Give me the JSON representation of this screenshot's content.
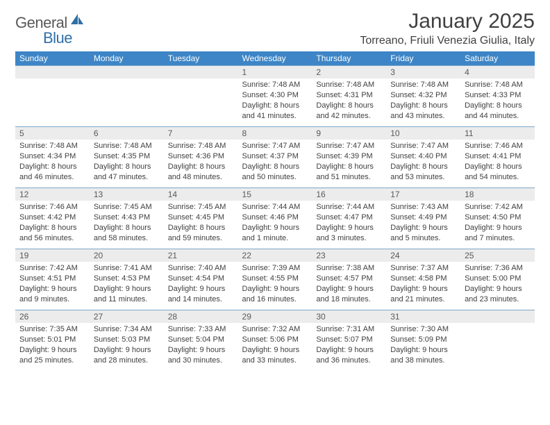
{
  "brand": {
    "general": "General",
    "blue": "Blue"
  },
  "title": "January 2025",
  "location": "Torreano, Friuli Venezia Giulia, Italy",
  "colors": {
    "header_bg": "#3d85c6",
    "header_text": "#ffffff",
    "daynum_bg": "#ececec",
    "text": "#404040",
    "muted": "#595959",
    "rule": "#7ba6c9",
    "brand_blue": "#2f6fa7"
  },
  "weekdays": [
    "Sunday",
    "Monday",
    "Tuesday",
    "Wednesday",
    "Thursday",
    "Friday",
    "Saturday"
  ],
  "weeks": [
    [
      {
        "n": "",
        "sr": "",
        "ss": "",
        "dl": ""
      },
      {
        "n": "",
        "sr": "",
        "ss": "",
        "dl": ""
      },
      {
        "n": "",
        "sr": "",
        "ss": "",
        "dl": ""
      },
      {
        "n": "1",
        "sr": "Sunrise: 7:48 AM",
        "ss": "Sunset: 4:30 PM",
        "dl": "Daylight: 8 hours and 41 minutes."
      },
      {
        "n": "2",
        "sr": "Sunrise: 7:48 AM",
        "ss": "Sunset: 4:31 PM",
        "dl": "Daylight: 8 hours and 42 minutes."
      },
      {
        "n": "3",
        "sr": "Sunrise: 7:48 AM",
        "ss": "Sunset: 4:32 PM",
        "dl": "Daylight: 8 hours and 43 minutes."
      },
      {
        "n": "4",
        "sr": "Sunrise: 7:48 AM",
        "ss": "Sunset: 4:33 PM",
        "dl": "Daylight: 8 hours and 44 minutes."
      }
    ],
    [
      {
        "n": "5",
        "sr": "Sunrise: 7:48 AM",
        "ss": "Sunset: 4:34 PM",
        "dl": "Daylight: 8 hours and 46 minutes."
      },
      {
        "n": "6",
        "sr": "Sunrise: 7:48 AM",
        "ss": "Sunset: 4:35 PM",
        "dl": "Daylight: 8 hours and 47 minutes."
      },
      {
        "n": "7",
        "sr": "Sunrise: 7:48 AM",
        "ss": "Sunset: 4:36 PM",
        "dl": "Daylight: 8 hours and 48 minutes."
      },
      {
        "n": "8",
        "sr": "Sunrise: 7:47 AM",
        "ss": "Sunset: 4:37 PM",
        "dl": "Daylight: 8 hours and 50 minutes."
      },
      {
        "n": "9",
        "sr": "Sunrise: 7:47 AM",
        "ss": "Sunset: 4:39 PM",
        "dl": "Daylight: 8 hours and 51 minutes."
      },
      {
        "n": "10",
        "sr": "Sunrise: 7:47 AM",
        "ss": "Sunset: 4:40 PM",
        "dl": "Daylight: 8 hours and 53 minutes."
      },
      {
        "n": "11",
        "sr": "Sunrise: 7:46 AM",
        "ss": "Sunset: 4:41 PM",
        "dl": "Daylight: 8 hours and 54 minutes."
      }
    ],
    [
      {
        "n": "12",
        "sr": "Sunrise: 7:46 AM",
        "ss": "Sunset: 4:42 PM",
        "dl": "Daylight: 8 hours and 56 minutes."
      },
      {
        "n": "13",
        "sr": "Sunrise: 7:45 AM",
        "ss": "Sunset: 4:43 PM",
        "dl": "Daylight: 8 hours and 58 minutes."
      },
      {
        "n": "14",
        "sr": "Sunrise: 7:45 AM",
        "ss": "Sunset: 4:45 PM",
        "dl": "Daylight: 8 hours and 59 minutes."
      },
      {
        "n": "15",
        "sr": "Sunrise: 7:44 AM",
        "ss": "Sunset: 4:46 PM",
        "dl": "Daylight: 9 hours and 1 minute."
      },
      {
        "n": "16",
        "sr": "Sunrise: 7:44 AM",
        "ss": "Sunset: 4:47 PM",
        "dl": "Daylight: 9 hours and 3 minutes."
      },
      {
        "n": "17",
        "sr": "Sunrise: 7:43 AM",
        "ss": "Sunset: 4:49 PM",
        "dl": "Daylight: 9 hours and 5 minutes."
      },
      {
        "n": "18",
        "sr": "Sunrise: 7:42 AM",
        "ss": "Sunset: 4:50 PM",
        "dl": "Daylight: 9 hours and 7 minutes."
      }
    ],
    [
      {
        "n": "19",
        "sr": "Sunrise: 7:42 AM",
        "ss": "Sunset: 4:51 PM",
        "dl": "Daylight: 9 hours and 9 minutes."
      },
      {
        "n": "20",
        "sr": "Sunrise: 7:41 AM",
        "ss": "Sunset: 4:53 PM",
        "dl": "Daylight: 9 hours and 11 minutes."
      },
      {
        "n": "21",
        "sr": "Sunrise: 7:40 AM",
        "ss": "Sunset: 4:54 PM",
        "dl": "Daylight: 9 hours and 14 minutes."
      },
      {
        "n": "22",
        "sr": "Sunrise: 7:39 AM",
        "ss": "Sunset: 4:55 PM",
        "dl": "Daylight: 9 hours and 16 minutes."
      },
      {
        "n": "23",
        "sr": "Sunrise: 7:38 AM",
        "ss": "Sunset: 4:57 PM",
        "dl": "Daylight: 9 hours and 18 minutes."
      },
      {
        "n": "24",
        "sr": "Sunrise: 7:37 AM",
        "ss": "Sunset: 4:58 PM",
        "dl": "Daylight: 9 hours and 21 minutes."
      },
      {
        "n": "25",
        "sr": "Sunrise: 7:36 AM",
        "ss": "Sunset: 5:00 PM",
        "dl": "Daylight: 9 hours and 23 minutes."
      }
    ],
    [
      {
        "n": "26",
        "sr": "Sunrise: 7:35 AM",
        "ss": "Sunset: 5:01 PM",
        "dl": "Daylight: 9 hours and 25 minutes."
      },
      {
        "n": "27",
        "sr": "Sunrise: 7:34 AM",
        "ss": "Sunset: 5:03 PM",
        "dl": "Daylight: 9 hours and 28 minutes."
      },
      {
        "n": "28",
        "sr": "Sunrise: 7:33 AM",
        "ss": "Sunset: 5:04 PM",
        "dl": "Daylight: 9 hours and 30 minutes."
      },
      {
        "n": "29",
        "sr": "Sunrise: 7:32 AM",
        "ss": "Sunset: 5:06 PM",
        "dl": "Daylight: 9 hours and 33 minutes."
      },
      {
        "n": "30",
        "sr": "Sunrise: 7:31 AM",
        "ss": "Sunset: 5:07 PM",
        "dl": "Daylight: 9 hours and 36 minutes."
      },
      {
        "n": "31",
        "sr": "Sunrise: 7:30 AM",
        "ss": "Sunset: 5:09 PM",
        "dl": "Daylight: 9 hours and 38 minutes."
      },
      {
        "n": "",
        "sr": "",
        "ss": "",
        "dl": ""
      }
    ]
  ]
}
